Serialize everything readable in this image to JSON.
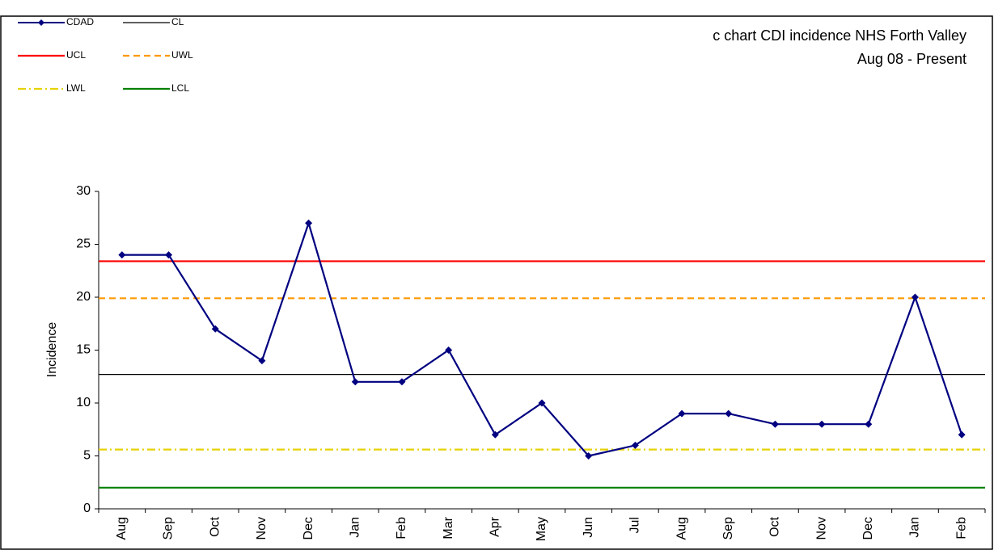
{
  "chart_data": {
    "type": "line",
    "title": "c chart CDI incidence NHS Forth Valley",
    "subtitle": "Aug 08 - Present",
    "y_label": "Incidence",
    "categories": [
      "Aug",
      "Sep",
      "Oct",
      "Nov",
      "Dec",
      "Jan",
      "Feb",
      "Mar",
      "Apr",
      "May",
      "Jun",
      "Jul",
      "Aug",
      "Sep",
      "Oct",
      "Nov",
      "Dec",
      "Jan",
      "Feb"
    ],
    "series": [
      {
        "name": "CDAD",
        "color": "#000080",
        "values": [
          24,
          24,
          17,
          14,
          27,
          12,
          12,
          15,
          7,
          10,
          5,
          6,
          9,
          9,
          8,
          8,
          8,
          20,
          7
        ]
      }
    ],
    "control_lines": [
      {
        "name": "CL",
        "color": "#000000",
        "dash": "solid",
        "value": 12.7
      },
      {
        "name": "UCL",
        "color": "#ff0000",
        "dash": "solid",
        "value": 23.4
      },
      {
        "name": "UWL",
        "color": "#ff9900",
        "dash": "dashed",
        "value": 19.9
      },
      {
        "name": "LWL",
        "color": "#e6d200",
        "dash": "dashdot",
        "value": 5.6
      },
      {
        "name": "LCL",
        "color": "#008000",
        "dash": "solid",
        "value": 2.0
      }
    ],
    "ylim": [
      0,
      30
    ],
    "yticks": [
      0,
      5,
      10,
      15,
      20,
      25,
      30
    ]
  }
}
